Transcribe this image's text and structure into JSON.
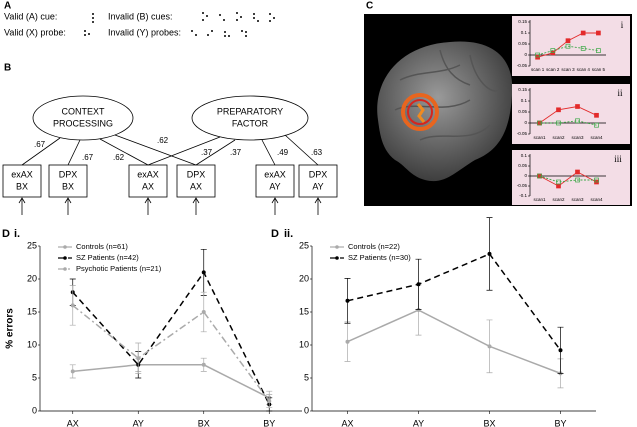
{
  "panel_a": {
    "label": "A",
    "items": [
      "Valid (A) cue:",
      "Invalid (B) cues:",
      "Valid (X) probe:",
      "Invalid (Y) probes:"
    ]
  },
  "panel_b": {
    "label": "B",
    "factors": [
      [
        "CONTEXT",
        "PROCESSING"
      ],
      [
        "PREPARATORY",
        "FACTOR"
      ]
    ],
    "indicators": [
      [
        "exAX",
        "BX"
      ],
      [
        "DPX",
        "BX"
      ],
      [
        "exAX",
        "AX"
      ],
      [
        "DPX",
        "AX"
      ],
      [
        "exAX",
        "AY"
      ],
      [
        "DPX",
        "AY"
      ]
    ],
    "loadings": [
      ".67",
      ".67",
      ".62",
      ".62",
      ".37",
      ".37",
      ".49",
      ".63"
    ]
  },
  "panel_c": {
    "label": "C"
  },
  "panel_d": {
    "labels": [
      "D",
      "D"
    ]
  },
  "chart_data": [
    {
      "type": "line",
      "title": "i",
      "categories": [
        "scan 1",
        "scan 2",
        "scan 3",
        "scan 4",
        "scan 5"
      ],
      "ylim": [
        -0.05,
        0.15
      ],
      "yticks": [
        -0.05,
        0,
        0.05,
        0.1,
        0.15
      ],
      "background": "#f3dde6",
      "series": [
        {
          "color": "#e32b2b",
          "marker": "square",
          "values": [
            -0.01,
            0.01,
            0.065,
            0.1,
            0.1
          ]
        },
        {
          "color": "#3aa845",
          "marker": "open-square",
          "dash": "2,1.5",
          "values": [
            0.0,
            0.02,
            0.04,
            0.03,
            0.02
          ]
        }
      ]
    },
    {
      "type": "line",
      "title": "ii",
      "categories": [
        "scan1",
        "scan2",
        "scan3",
        "scan4"
      ],
      "ylim": [
        -0.05,
        0.15
      ],
      "yticks": [
        -0.05,
        0,
        0.05,
        0.1,
        0.15
      ],
      "background": "#f3dde6",
      "series": [
        {
          "color": "#e32b2b",
          "marker": "square",
          "values": [
            0,
            0.06,
            0.075,
            0.035
          ]
        },
        {
          "color": "#3aa845",
          "marker": "open-square",
          "dash": "2,1.5",
          "values": [
            0,
            0,
            0.01,
            -0.01
          ]
        }
      ]
    },
    {
      "type": "line",
      "title": "iii",
      "categories": [
        "scan1",
        "scan2",
        "scan3",
        "scan4"
      ],
      "ylim": [
        -0.1,
        0.1
      ],
      "yticks": [
        -0.1,
        -0.05,
        0,
        0.05,
        0.1
      ],
      "background": "#f3dde6",
      "series": [
        {
          "color": "#e32b2b",
          "marker": "square",
          "values": [
            0,
            -0.05,
            0.02,
            -0.03
          ]
        },
        {
          "color": "#3aa845",
          "marker": "open-square",
          "dash": "2,1.5",
          "values": [
            0,
            -0.03,
            -0.02,
            -0.02
          ]
        }
      ]
    },
    {
      "type": "line",
      "title": "i.",
      "y_label": "% errors",
      "categories": [
        "AX",
        "AY",
        "BX",
        "BY"
      ],
      "ylim": [
        0,
        25
      ],
      "yticks": [
        0,
        5,
        10,
        15,
        20,
        25
      ],
      "series": [
        {
          "name": "Controls (n=61)",
          "color": "#aaaaaa",
          "marker": "circle",
          "values": [
            6,
            7,
            7,
            2
          ],
          "errors": [
            1,
            1,
            1,
            1
          ]
        },
        {
          "name": "SZ Patients (n=42)",
          "color": "#000000",
          "marker": "circle",
          "dash": "6,4",
          "values": [
            18,
            7,
            21,
            1
          ],
          "errors": [
            2,
            2,
            3.5,
            1
          ]
        },
        {
          "name": "Psychotic Patients (n=21)",
          "color": "#aaaaaa",
          "marker": "circle",
          "dash": "7,3,2,3",
          "values": [
            16,
            8,
            15,
            1.5
          ],
          "errors": [
            3,
            2.3,
            3,
            1
          ]
        }
      ]
    },
    {
      "type": "line",
      "title": "ii.",
      "categories": [
        "AX",
        "AY",
        "BX",
        "BY"
      ],
      "ylim": [
        0,
        25
      ],
      "yticks": [
        0,
        5,
        10,
        15,
        20,
        25
      ],
      "series": [
        {
          "name": "Controls (n=22)",
          "color": "#aaaaaa",
          "marker": "circle",
          "values": [
            10.5,
            15.3,
            9.8,
            5.7
          ],
          "errors": [
            3,
            3.8,
            4,
            2.2
          ]
        },
        {
          "name": "SZ Patients (n=30)",
          "color": "#000000",
          "marker": "circle",
          "dash": "6,4",
          "values": [
            16.7,
            19.2,
            23.8,
            9.2
          ],
          "errors": [
            3.4,
            3.8,
            5.5,
            3.5
          ]
        }
      ]
    }
  ]
}
